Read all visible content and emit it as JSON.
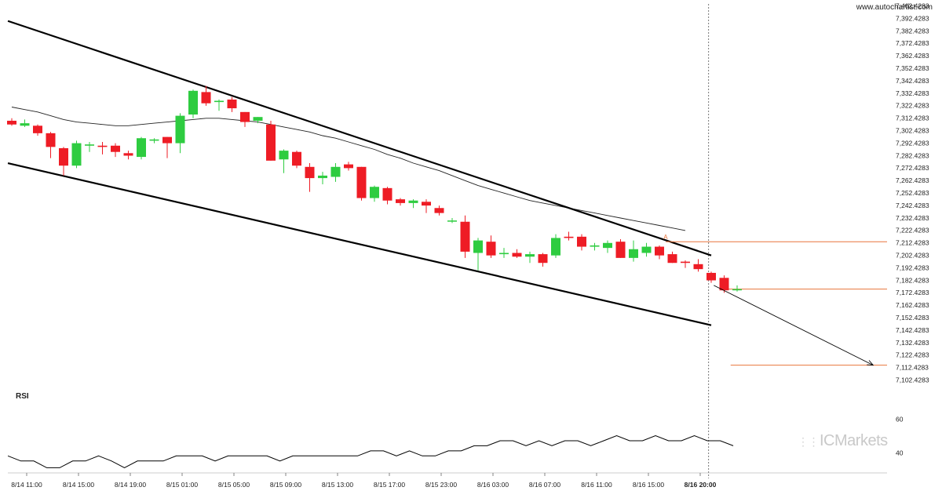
{
  "watermark": "www.autochartist.com",
  "brand": "ICMarkets",
  "rsi_label": "RSI",
  "colors": {
    "up": "#2ecc40",
    "down": "#ee1c25",
    "channel": "#000000",
    "ma": "#222222",
    "level": "#e8743b",
    "grid_text": "#222222"
  },
  "chart_data": {
    "type": "candlestick",
    "title": "",
    "price_axis": {
      "min": 7102.4283,
      "max": 7402.4283,
      "step": 10,
      "tick_labels": [
        "7,402.4283",
        "7,392.4283",
        "7,382.4283",
        "7,372.4283",
        "7,362.4283",
        "7,352.4283",
        "7,342.4283",
        "7,332.4283",
        "7,322.4283",
        "7,312.4283",
        "7,302.4283",
        "7,292.4283",
        "7,282.4283",
        "7,272.4283",
        "7,262.4283",
        "7,252.4283",
        "7,242.4283",
        "7,232.4283",
        "7,222.4283",
        "7,212.4283",
        "7,202.4283",
        "7,192.4283",
        "7,182.4283",
        "7,172.4283",
        "7,162.4283",
        "7,152.4283",
        "7,142.4283",
        "7,132.4283",
        "7,122.4283",
        "7,112.4283",
        "7,102.4283"
      ]
    },
    "time_labels": [
      "8/14 11:00",
      "8/14 15:00",
      "8/14 19:00",
      "8/15 01:00",
      "8/15 05:00",
      "8/15 09:00",
      "8/15 13:00",
      "8/15 17:00",
      "8/15 23:00",
      "8/16 03:00",
      "8/16 07:00",
      "8/16 11:00",
      "8/16 15:00",
      "8/16 20:00"
    ],
    "time_label_index": [
      0,
      4,
      8,
      12,
      16,
      20,
      24,
      28,
      32,
      36,
      40,
      44,
      48,
      52
    ],
    "candles": [
      {
        "o": 7310,
        "h": 7312,
        "l": 7306,
        "c": 7307
      },
      {
        "o": 7306,
        "h": 7311,
        "l": 7305,
        "c": 7308
      },
      {
        "o": 7306,
        "h": 7307,
        "l": 7298,
        "c": 7300
      },
      {
        "o": 7300,
        "h": 7301,
        "l": 7280,
        "c": 7289
      },
      {
        "o": 7288,
        "h": 7289,
        "l": 7266,
        "c": 7274
      },
      {
        "o": 7274,
        "h": 7294,
        "l": 7272,
        "c": 7292
      },
      {
        "o": 7290,
        "h": 7293,
        "l": 7285,
        "c": 7291
      },
      {
        "o": 7290,
        "h": 7293,
        "l": 7283,
        "c": 7289
      },
      {
        "o": 7290,
        "h": 7292,
        "l": 7281,
        "c": 7285
      },
      {
        "o": 7284,
        "h": 7286,
        "l": 7279,
        "c": 7282
      },
      {
        "o": 7281,
        "h": 7297,
        "l": 7279,
        "c": 7296
      },
      {
        "o": 7294,
        "h": 7296,
        "l": 7292,
        "c": 7295
      },
      {
        "o": 7297,
        "h": 7297,
        "l": 7280,
        "c": 7292
      },
      {
        "o": 7292,
        "h": 7316,
        "l": 7284,
        "c": 7314
      },
      {
        "o": 7315,
        "h": 7335,
        "l": 7312,
        "c": 7334
      },
      {
        "o": 7333,
        "h": 7338,
        "l": 7322,
        "c": 7324
      },
      {
        "o": 7325,
        "h": 7327,
        "l": 7318,
        "c": 7326
      },
      {
        "o": 7327,
        "h": 7329,
        "l": 7317,
        "c": 7320
      },
      {
        "o": 7317,
        "h": 7317,
        "l": 7305,
        "c": 7309
      },
      {
        "o": 7310,
        "h": 7313,
        "l": 7308,
        "c": 7313
      },
      {
        "o": 7307,
        "h": 7310,
        "l": 7278,
        "c": 7278
      },
      {
        "o": 7279,
        "h": 7287,
        "l": 7268,
        "c": 7286
      },
      {
        "o": 7285,
        "h": 7286,
        "l": 7272,
        "c": 7274
      },
      {
        "o": 7273,
        "h": 7276,
        "l": 7253,
        "c": 7264
      },
      {
        "o": 7264,
        "h": 7269,
        "l": 7259,
        "c": 7266
      },
      {
        "o": 7265,
        "h": 7276,
        "l": 7261,
        "c": 7273
      },
      {
        "o": 7275,
        "h": 7277,
        "l": 7270,
        "c": 7272
      },
      {
        "o": 7273,
        "h": 7273,
        "l": 7246,
        "c": 7248
      },
      {
        "o": 7248,
        "h": 7258,
        "l": 7245,
        "c": 7257
      },
      {
        "o": 7256,
        "h": 7257,
        "l": 7243,
        "c": 7246
      },
      {
        "o": 7247,
        "h": 7248,
        "l": 7242,
        "c": 7244
      },
      {
        "o": 7244,
        "h": 7247,
        "l": 7240,
        "c": 7246
      },
      {
        "o": 7245,
        "h": 7247,
        "l": 7236,
        "c": 7242
      },
      {
        "o": 7240,
        "h": 7242,
        "l": 7234,
        "c": 7236
      },
      {
        "o": 7230,
        "h": 7232,
        "l": 7228,
        "c": 7230
      },
      {
        "o": 7229,
        "h": 7234,
        "l": 7200,
        "c": 7205
      },
      {
        "o": 7204,
        "h": 7216,
        "l": 7190,
        "c": 7214
      },
      {
        "o": 7213,
        "h": 7218,
        "l": 7200,
        "c": 7202
      },
      {
        "o": 7203,
        "h": 7208,
        "l": 7200,
        "c": 7204
      },
      {
        "o": 7204,
        "h": 7207,
        "l": 7200,
        "c": 7201
      },
      {
        "o": 7201,
        "h": 7205,
        "l": 7196,
        "c": 7203
      },
      {
        "o": 7203,
        "h": 7204,
        "l": 7193,
        "c": 7196
      },
      {
        "o": 7202,
        "h": 7219,
        "l": 7200,
        "c": 7216
      },
      {
        "o": 7217,
        "h": 7221,
        "l": 7214,
        "c": 7216
      },
      {
        "o": 7217,
        "h": 7219,
        "l": 7206,
        "c": 7209
      },
      {
        "o": 7209,
        "h": 7212,
        "l": 7206,
        "c": 7210
      },
      {
        "o": 7208,
        "h": 7214,
        "l": 7204,
        "c": 7212
      },
      {
        "o": 7213,
        "h": 7215,
        "l": 7200,
        "c": 7200
      },
      {
        "o": 7200,
        "h": 7214,
        "l": 7197,
        "c": 7207
      },
      {
        "o": 7204,
        "h": 7212,
        "l": 7201,
        "c": 7209
      },
      {
        "o": 7209,
        "h": 7210,
        "l": 7199,
        "c": 7202
      },
      {
        "o": 7203,
        "h": 7205,
        "l": 7196,
        "c": 7196
      },
      {
        "o": 7197,
        "h": 7198,
        "l": 7192,
        "c": 7196
      },
      {
        "o": 7195,
        "h": 7199,
        "l": 7189,
        "c": 7191
      },
      {
        "o": 7188,
        "h": 7189,
        "l": 7180,
        "c": 7182
      },
      {
        "o": 7184,
        "h": 7186,
        "l": 7172,
        "c": 7174
      },
      {
        "o": 7174,
        "h": 7178,
        "l": 7173,
        "c": 7175
      }
    ],
    "moving_average": [
      7321,
      7319,
      7317,
      7314,
      7311,
      7309,
      7308,
      7307,
      7306,
      7306,
      7307,
      7308,
      7309,
      7310,
      7311,
      7312,
      7312,
      7311,
      7310,
      7309,
      7307,
      7305,
      7303,
      7301,
      7298,
      7296,
      7293,
      7290,
      7287,
      7283,
      7280,
      7276,
      7273,
      7270,
      7266,
      7262,
      7258,
      7255,
      7252,
      7249,
      7246,
      7244,
      7242,
      7240,
      7238,
      7236,
      7234,
      7232,
      7230,
      7228,
      7226,
      7224,
      7222
    ],
    "channel_upper": {
      "start": {
        "i": -0.3,
        "p": 7390
      },
      "end": {
        "i": 54.0,
        "p": 7202
      }
    },
    "channel_lower": {
      "start": {
        "i": -0.3,
        "p": 7276
      },
      "end": {
        "i": 54.0,
        "p": 7146
      }
    },
    "projection": {
      "start": {
        "i": 54.2,
        "p": 7178
      },
      "end": {
        "i": 66.5,
        "p": 7114
      }
    },
    "levels": [
      {
        "name": "A",
        "price": 7213,
        "from_i": 50.5
      },
      {
        "name": "",
        "price": 7175,
        "from_i": 55.2
      },
      {
        "name": "",
        "price": 7114,
        "from_i": 55.5
      }
    ],
    "marker_label": "A",
    "rsi": {
      "tick_labels": [
        "60",
        "40"
      ],
      "values": [
        38,
        35,
        35,
        31,
        31,
        35,
        35,
        38,
        35,
        31,
        35,
        35,
        35,
        38,
        38,
        38,
        35,
        38,
        38,
        38,
        38,
        35,
        38,
        38,
        38,
        38,
        38,
        38,
        41,
        41,
        38,
        41,
        38,
        38,
        41,
        41,
        44,
        44,
        47,
        47,
        44,
        47,
        44,
        47,
        47,
        44,
        47,
        50,
        47,
        47,
        50,
        47,
        47,
        50,
        47,
        47,
        44
      ]
    }
  }
}
